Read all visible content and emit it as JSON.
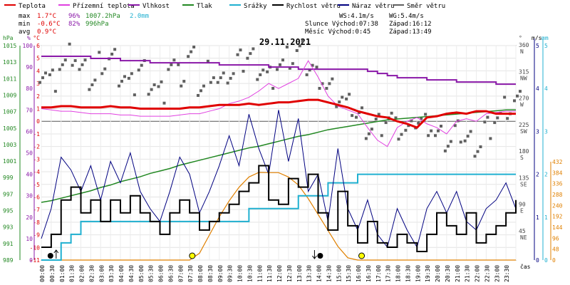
{
  "chart_data": {
    "type": "line",
    "title": "29.11.2021",
    "x_axis_label": "čas",
    "x_ticks": [
      "00:00",
      "00:30",
      "01:00",
      "01:30",
      "02:00",
      "02:30",
      "03:00",
      "03:30",
      "04:00",
      "04:30",
      "05:00",
      "05:30",
      "06:00",
      "06:30",
      "07:00",
      "07:30",
      "08:00",
      "08:30",
      "09:00",
      "09:30",
      "10:00",
      "10:30",
      "11:00",
      "11:30",
      "12:00",
      "12:30",
      "13:00",
      "13:30",
      "14:00",
      "14:30",
      "15:00",
      "15:30",
      "16:00",
      "16:30",
      "17:00",
      "17:30",
      "18:00",
      "18:30",
      "19:00",
      "19:30",
      "20:00",
      "20:30",
      "21:00",
      "21:30",
      "22:00",
      "22:30",
      "23:00",
      "23:30"
    ],
    "legend": [
      {
        "name": "Teplota",
        "color": "#e00000"
      },
      {
        "name": "Přízemní teplota",
        "color": "#e040e0"
      },
      {
        "name": "Vlhkost",
        "color": "#8a18a8"
      },
      {
        "name": "Tlak",
        "color": "#228822"
      },
      {
        "name": "Srážky",
        "color": "#20b0d0"
      },
      {
        "name": "Rychlost větru",
        "color": "#000000"
      },
      {
        "name": "Náraz větru",
        "color": "#000080"
      },
      {
        "name": "Směr větru",
        "color": "#606060"
      }
    ],
    "stats": {
      "max_label": "max",
      "min_label": "min",
      "avg_label": "avg",
      "max_temp": "1.7°C",
      "min_temp": "-0.6°C",
      "avg_temp": "0.9°C",
      "max_hum": "96%",
      "min_hum": "82%",
      "max_press": "1007.2hPa",
      "min_press": "996hPa",
      "max_rain": "2.0mm"
    },
    "info": {
      "ws": "WS:4.1m/s",
      "wg": "WG:5.4m/s",
      "slunce": "Slunce Východ:07:38",
      "slunce_zapad": "Západ:16:12",
      "mesic": "Měsíc  Východ:0:45",
      "mesic_zapad": "Západ:13:49"
    },
    "axes": {
      "pressure": {
        "label": "hPa",
        "color": "#228822",
        "ticks": [
          "1015",
          "1013",
          "1011",
          "1009",
          "1007",
          "1005",
          "1003",
          "1001",
          "999",
          "997",
          "995",
          "993",
          "991",
          "989"
        ]
      },
      "humidity": {
        "label": "%",
        "color": "#8a18a8",
        "ticks": [
          "100",
          "90",
          "80",
          "70",
          "60",
          "50",
          "40",
          "30",
          "20",
          "10",
          "0"
        ]
      },
      "temperature": {
        "label": "°C",
        "color": "#e00000",
        "ticks": [
          "6",
          "5",
          "4",
          "3",
          "2",
          "1",
          "0",
          "-1",
          "-2",
          "-3",
          "-4",
          "-5",
          "-6",
          "-7",
          "-8",
          "-9",
          "-10",
          "-11"
        ]
      },
      "direction": {
        "label": "°",
        "ticks": [
          "360",
          "315",
          "270",
          "225",
          "180",
          "135",
          "90",
          "45"
        ],
        "names": [
          "N",
          "NW",
          "W",
          "SW",
          "S",
          "SE",
          "E",
          "NE"
        ]
      },
      "wind": {
        "label": "m/s",
        "ticks": [
          "5",
          "4",
          "3",
          "2",
          "1",
          "0"
        ]
      },
      "rain": {
        "label": "mm",
        "ticks": [
          "5",
          "4",
          "3",
          "2",
          "1",
          "0"
        ]
      },
      "solar": {
        "color": "#e08000",
        "ticks": [
          "432",
          "384",
          "336",
          "288",
          "240",
          "192",
          "144",
          "96",
          "48",
          "0"
        ]
      }
    },
    "series": {
      "temperature_c": [
        1.1,
        1.1,
        1.2,
        1.2,
        1.1,
        1.1,
        1.1,
        1.2,
        1.1,
        1.1,
        1.0,
        1.0,
        1.0,
        1.0,
        1.0,
        1.1,
        1.1,
        1.2,
        1.3,
        1.3,
        1.3,
        1.4,
        1.3,
        1.4,
        1.5,
        1.5,
        1.6,
        1.7,
        1.7,
        1.5,
        1.3,
        1.1,
        0.8,
        0.6,
        0.4,
        0.3,
        0.0,
        -0.2,
        -0.5,
        0.3,
        0.4,
        0.6,
        0.7,
        0.6,
        0.8,
        0.8,
        0.6,
        0.6,
        0.6
      ],
      "ground_temp_c": [
        1.0,
        0.9,
        0.8,
        0.8,
        0.7,
        0.6,
        0.6,
        0.6,
        0.5,
        0.5,
        0.4,
        0.4,
        0.4,
        0.4,
        0.5,
        0.6,
        0.6,
        0.8,
        1.0,
        1.4,
        1.6,
        1.9,
        2.4,
        3.0,
        2.6,
        3.0,
        3.4,
        4.8,
        3.5,
        2.0,
        1.2,
        0.9,
        0.6,
        -0.5,
        -1.5,
        -2.0,
        -0.5,
        0.0,
        0.3,
        -0.2,
        -0.5,
        -1.0,
        0.0,
        0.2,
        0.0,
        0.6,
        0.7,
        0.8,
        0.8
      ],
      "humidity_pct": [
        95,
        95,
        95,
        95,
        95,
        94,
        94,
        94,
        93,
        93,
        93,
        92,
        92,
        92,
        92,
        92,
        92,
        92,
        91,
        91,
        91,
        91,
        91,
        90,
        90,
        90,
        89,
        89,
        89,
        89,
        89,
        89,
        89,
        88,
        87,
        86,
        85,
        85,
        85,
        84,
        84,
        84,
        83,
        83,
        83,
        83,
        82,
        82,
        82
      ],
      "pressure_hpa": [
        996.0,
        996.2,
        996.5,
        996.8,
        997.1,
        997.4,
        997.8,
        998.1,
        998.5,
        998.8,
        999.1,
        999.5,
        999.8,
        1000.1,
        1000.5,
        1000.8,
        1001.1,
        1001.4,
        1001.7,
        1002.0,
        1002.3,
        1002.6,
        1002.8,
        1003.1,
        1003.4,
        1003.7,
        1004.0,
        1004.2,
        1004.5,
        1004.8,
        1005.0,
        1005.2,
        1005.4,
        1005.6,
        1005.8,
        1006.0,
        1006.1,
        1006.2,
        1006.3,
        1006.4,
        1006.5,
        1006.6,
        1006.7,
        1006.8,
        1006.9,
        1007.0,
        1007.1,
        1007.2,
        1007.2
      ],
      "rain_mm": [
        0.0,
        0.0,
        0.4,
        0.6,
        0.9,
        0.9,
        0.9,
        0.9,
        0.9,
        0.9,
        0.9,
        0.9,
        0.9,
        0.9,
        0.9,
        0.9,
        0.9,
        0.9,
        0.9,
        0.9,
        0.9,
        1.2,
        1.2,
        1.2,
        1.2,
        1.2,
        1.5,
        1.5,
        1.5,
        1.8,
        1.8,
        1.8,
        2.0,
        2.0,
        2.0,
        2.0,
        2.0,
        2.0,
        2.0,
        2.0,
        2.0,
        2.0,
        2.0,
        2.0,
        2.0,
        2.0,
        2.0,
        2.0,
        2.0
      ],
      "wind_speed_ms": [
        0.3,
        0.6,
        1.4,
        1.7,
        1.1,
        1.4,
        0.9,
        1.4,
        1.1,
        1.5,
        1.1,
        0.9,
        0.6,
        1.1,
        1.4,
        1.1,
        0.7,
        0.9,
        1.1,
        1.3,
        1.6,
        1.8,
        2.2,
        1.4,
        1.3,
        1.9,
        1.7,
        2.0,
        1.1,
        0.7,
        1.6,
        0.8,
        0.4,
        0.9,
        0.4,
        0.3,
        0.6,
        0.4,
        0.2,
        0.6,
        1.1,
        0.8,
        0.6,
        1.1,
        0.4,
        0.6,
        0.8,
        1.1,
        1.4
      ],
      "wind_gust_ms": [
        0.5,
        1.2,
        2.4,
        2.1,
        1.6,
        2.2,
        1.4,
        2.3,
        1.8,
        2.5,
        1.6,
        1.2,
        0.9,
        1.6,
        2.4,
        2.0,
        1.1,
        1.6,
        2.2,
        2.9,
        2.2,
        3.4,
        2.6,
        2.0,
        3.5,
        2.3,
        3.3,
        1.6,
        2.0,
        0.9,
        2.6,
        1.2,
        0.7,
        1.4,
        0.6,
        0.3,
        1.2,
        0.7,
        0.3,
        1.2,
        1.6,
        1.1,
        1.6,
        0.9,
        0.7,
        1.2,
        1.4,
        1.8,
        1.2
      ],
      "solar_wm2": [
        0,
        0,
        0,
        0,
        0,
        0,
        0,
        0,
        0,
        0,
        0,
        0,
        0,
        0,
        0,
        0,
        30,
        110,
        190,
        260,
        320,
        365,
        385,
        384,
        384,
        365,
        330,
        270,
        200,
        130,
        60,
        10,
        0,
        0,
        0,
        0,
        0,
        0,
        0,
        0,
        0,
        0,
        0,
        0,
        0,
        0,
        0,
        0,
        0
      ],
      "wind_dir_deg": [
        320,
        305,
        330,
        345,
        318,
        300,
        335,
        340,
        310,
        295,
        325,
        300,
        285,
        330,
        310,
        340,
        290,
        320,
        300,
        315,
        335,
        345,
        325,
        310,
        330,
        340,
        350,
        325,
        310,
        290,
        275,
        260,
        245,
        225,
        230,
        240,
        220,
        215,
        235,
        230,
        210,
        200,
        215,
        205,
        195,
        225,
        240,
        255,
        265
      ]
    },
    "markers": {
      "sunrise": "07:38",
      "sunset": "16:12",
      "moonrise": "00:45",
      "moonset": "13:49"
    }
  }
}
